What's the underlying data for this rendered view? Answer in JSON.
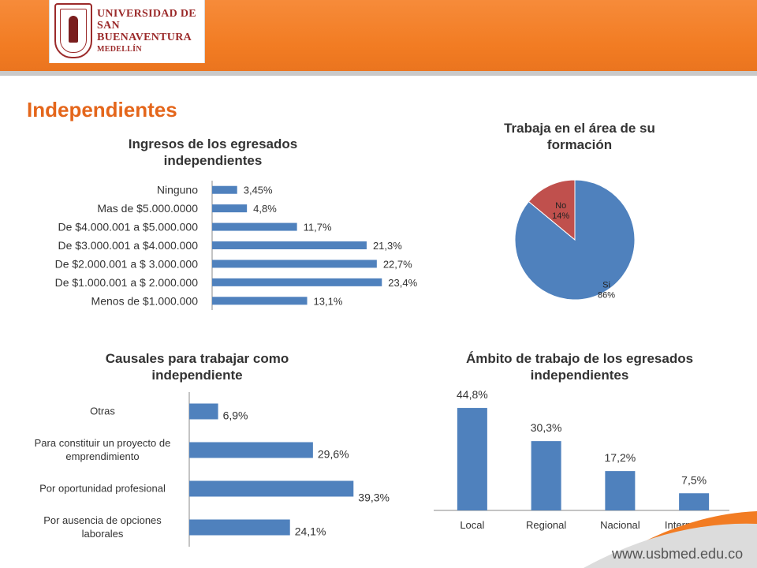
{
  "header": {
    "university_lines": [
      "UNIVERSIDAD DE",
      "SAN BUENAVENTURA",
      "MEDELLÍN"
    ],
    "brand_color": "#f27c23"
  },
  "page": {
    "title": "Independientes",
    "url": "www.usbmed.edu.co"
  },
  "chart_data": [
    {
      "id": "ingresos",
      "type": "bar",
      "orientation": "horizontal",
      "title": "Ingresos de los egresados independientes",
      "categories": [
        "Ninguno",
        "Mas de $5.000.0000",
        "De $4.000.001 a $5.000.000",
        "De $3.000.001 a $4.000.000",
        "De $2.000.001 a $ 3.000.000",
        "De $1.000.001 a $ 2.000.000",
        "Menos de $1.000.000"
      ],
      "values": [
        3.45,
        4.8,
        11.7,
        21.3,
        22.7,
        23.4,
        13.1
      ],
      "labels": [
        "3,45%",
        "4,8%",
        "11,7%",
        "21,3%",
        "22,7%",
        "23,4%",
        "13,1%"
      ],
      "color": "#4f81bd"
    },
    {
      "id": "trabaja_area",
      "type": "pie",
      "title": "Trabaja en el área de su formación",
      "slices": [
        {
          "name": "No",
          "value": 14,
          "label": "14%",
          "color": "#c0504d"
        },
        {
          "name": "Si",
          "value": 86,
          "label": "86%",
          "color": "#4f81bd"
        }
      ]
    },
    {
      "id": "causales",
      "type": "bar",
      "orientation": "horizontal",
      "title": "Causales para trabajar como independiente",
      "categories": [
        "Otras",
        "Para constituir un proyecto de emprendimiento",
        "Por oportunidad profesional",
        "Por ausencia de opciones laborales"
      ],
      "category_lines": [
        [
          "Otras"
        ],
        [
          "Para constituir un proyecto de",
          "emprendimiento"
        ],
        [
          "Por oportunidad profesional"
        ],
        [
          "Por ausencia de opciones",
          "laborales"
        ]
      ],
      "values": [
        6.9,
        29.6,
        39.3,
        24.1
      ],
      "labels": [
        "6,9%",
        "29,6%",
        "39,3%",
        "24,1%"
      ],
      "color": "#4f81bd"
    },
    {
      "id": "ambito",
      "type": "bar",
      "orientation": "vertical",
      "title": "Ámbito de trabajo de los egresados independientes",
      "categories": [
        "Local",
        "Regional",
        "Nacional",
        "Internacional"
      ],
      "values": [
        44.8,
        30.3,
        17.2,
        7.5
      ],
      "labels": [
        "44,8%",
        "30,3%",
        "17,2%",
        "7,5%"
      ],
      "color": "#4f81bd"
    }
  ]
}
